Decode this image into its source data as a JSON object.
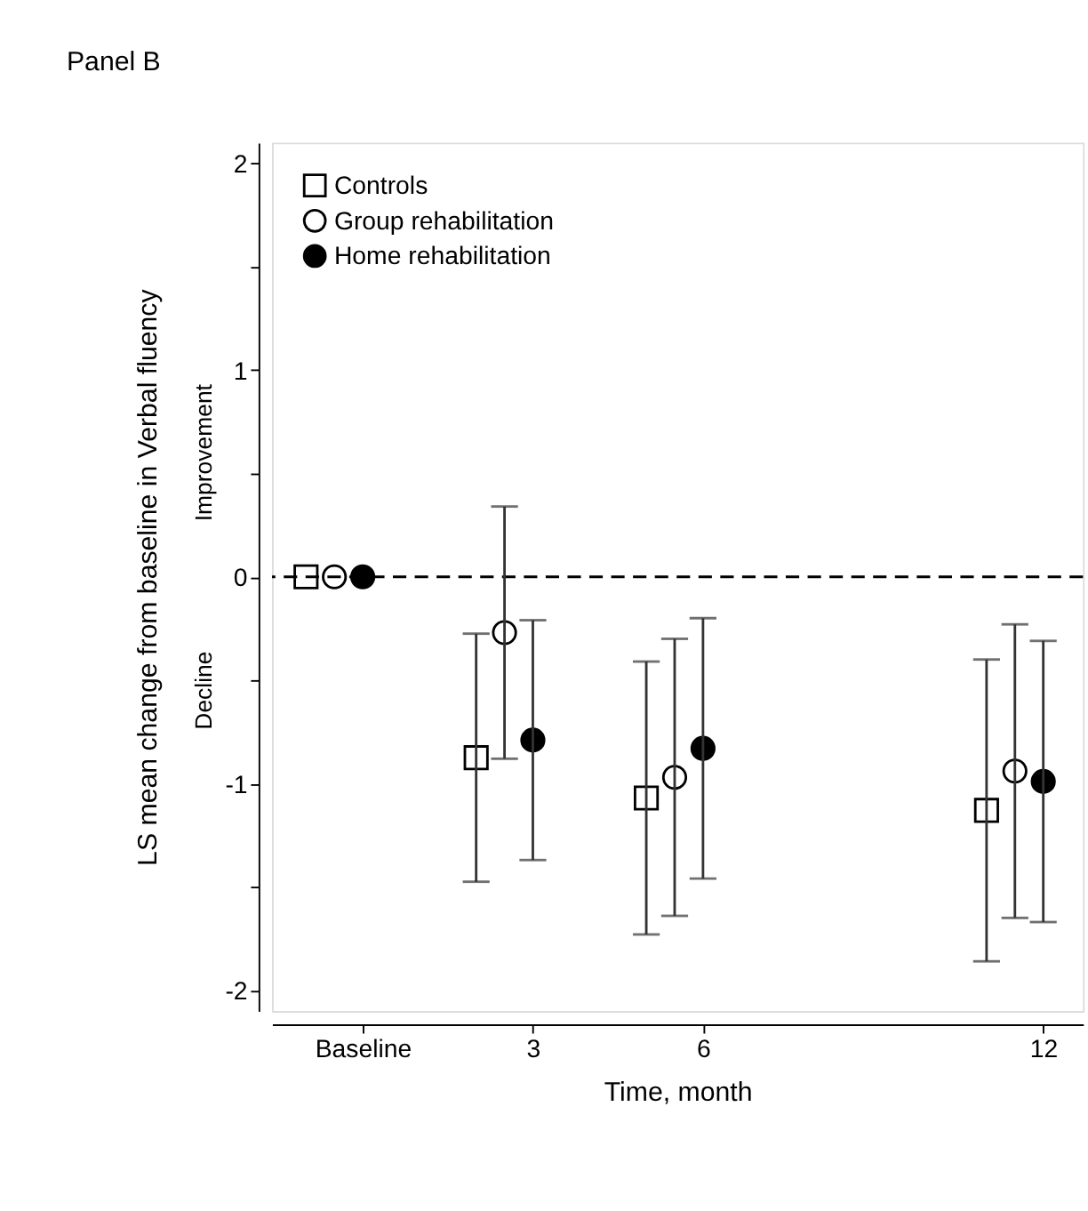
{
  "chart_data": {
    "type": "scatter",
    "title": "Panel B",
    "xlabel": "Time, month",
    "ylabel": "LS mean change from baseline in Verbal fluency",
    "annotations": [
      "Improvement",
      "Decline"
    ],
    "xlim": [
      -1.6,
      12.7
    ],
    "xticks": [
      {
        "value": 0,
        "label": "Baseline"
      },
      3,
      6,
      12
    ],
    "ylim": [
      -2.1,
      2.1
    ],
    "yticks": [
      -2,
      {
        "value": -1.5,
        "label": null
      },
      -1,
      {
        "value": -0.5,
        "label": null
      },
      0,
      {
        "value": 0.5,
        "label": null
      },
      1,
      {
        "value": 1.5,
        "label": null
      },
      2
    ],
    "ref_lines": [
      {
        "axis": "y",
        "value": 0,
        "color": "#000000",
        "line_style": "dashed"
      }
    ],
    "legend": "top left",
    "grid": false,
    "series": [
      {
        "name": "Controls",
        "color": "#ffffff",
        "marker": "square",
        "x": [
          -1,
          2,
          5,
          11
        ],
        "values": [
          0,
          -0.875,
          -1.07,
          -1.13
        ],
        "errors": [
          null,
          0.6,
          0.66,
          0.73
        ]
      },
      {
        "name": "Group rehabilitation",
        "color": "#ffffff",
        "marker": "circle",
        "x": [
          -0.5,
          2.5,
          5.5,
          11.5
        ],
        "values": [
          0,
          -0.27,
          -0.97,
          -0.94
        ],
        "errors": [
          null,
          0.61,
          0.67,
          0.71
        ]
      },
      {
        "name": "Home rehabilitation",
        "color": "#000000",
        "marker": "circle",
        "x": [
          0,
          3,
          6,
          12
        ],
        "values": [
          0,
          -0.79,
          -0.83,
          -0.99
        ],
        "errors": [
          null,
          0.58,
          0.63,
          0.68
        ]
      }
    ]
  }
}
